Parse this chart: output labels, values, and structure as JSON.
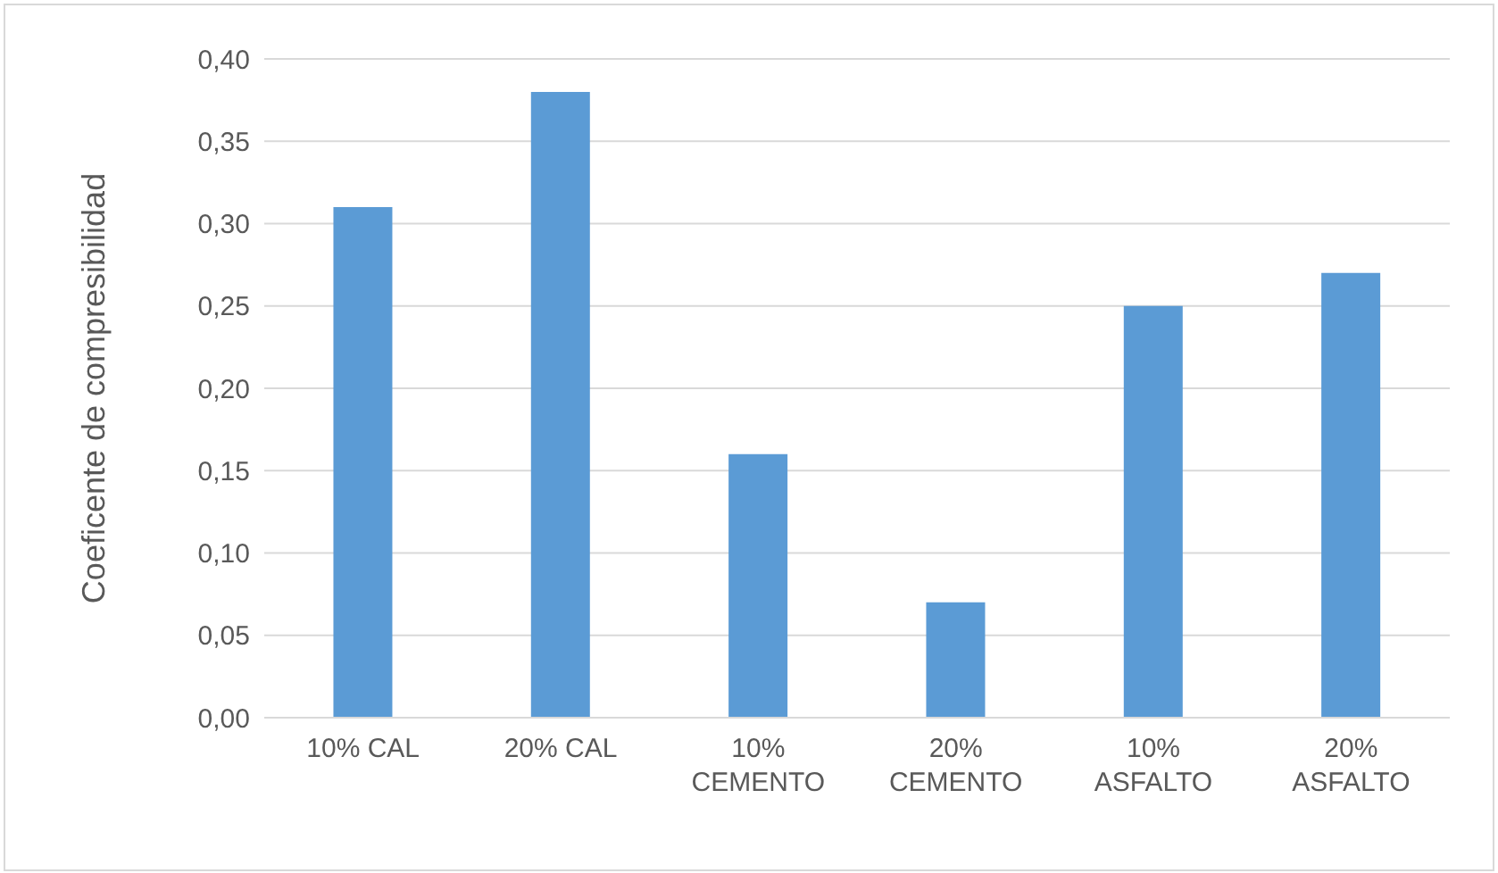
{
  "chart_data": {
    "type": "bar",
    "ylabel": "Coeficente de compresibilidad",
    "categories": [
      "10% CAL",
      "20% CAL",
      "10% CEMENTO",
      "20% CEMENTO",
      "10% ASFALTO",
      "20% ASFALTO"
    ],
    "values": [
      0.31,
      0.38,
      0.16,
      0.07,
      0.25,
      0.27
    ],
    "color": "#5b9bd5",
    "ylim": [
      0,
      0.4
    ],
    "yticks": [
      {
        "value": 0,
        "label": "0,00"
      },
      {
        "value": 0.05,
        "label": "0,05"
      },
      {
        "value": 0.1,
        "label": "0,10"
      },
      {
        "value": 0.15,
        "label": "0,15"
      },
      {
        "value": 0.2,
        "label": "0,20"
      },
      {
        "value": 0.25,
        "label": "0,25"
      },
      {
        "value": 0.3,
        "label": "0,30"
      },
      {
        "value": 0.35,
        "label": "0,35"
      },
      {
        "value": 0.4,
        "label": "0,40"
      }
    ],
    "grid": "y",
    "legend": false
  }
}
